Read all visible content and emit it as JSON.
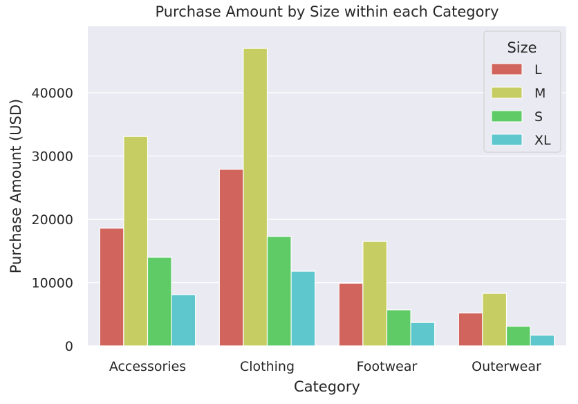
{
  "chart_data": {
    "type": "bar",
    "title": "Purchase Amount by Size within each Category",
    "xlabel": "Category",
    "ylabel": "Purchase Amount (USD)",
    "categories": [
      "Accessories",
      "Clothing",
      "Footwear",
      "Outerwear"
    ],
    "ylim": [
      0,
      50500
    ],
    "yticks": [
      0,
      10000,
      20000,
      30000,
      40000
    ],
    "grid": true,
    "legend": {
      "title": "Size",
      "placement": "top-right"
    },
    "series": [
      {
        "name": "L",
        "color": "#d1645c",
        "values": [
          18600,
          27900,
          9900,
          5200
        ]
      },
      {
        "name": "M",
        "color": "#c6cd62",
        "values": [
          33100,
          47000,
          16500,
          8300
        ]
      },
      {
        "name": "S",
        "color": "#5fcb66",
        "values": [
          14000,
          17300,
          5700,
          3100
        ]
      },
      {
        "name": "XL",
        "color": "#5ec6cd",
        "values": [
          8100,
          11800,
          3700,
          1700
        ]
      }
    ],
    "background_color": "#eaeaf2",
    "grid_color": "#ffffff"
  }
}
